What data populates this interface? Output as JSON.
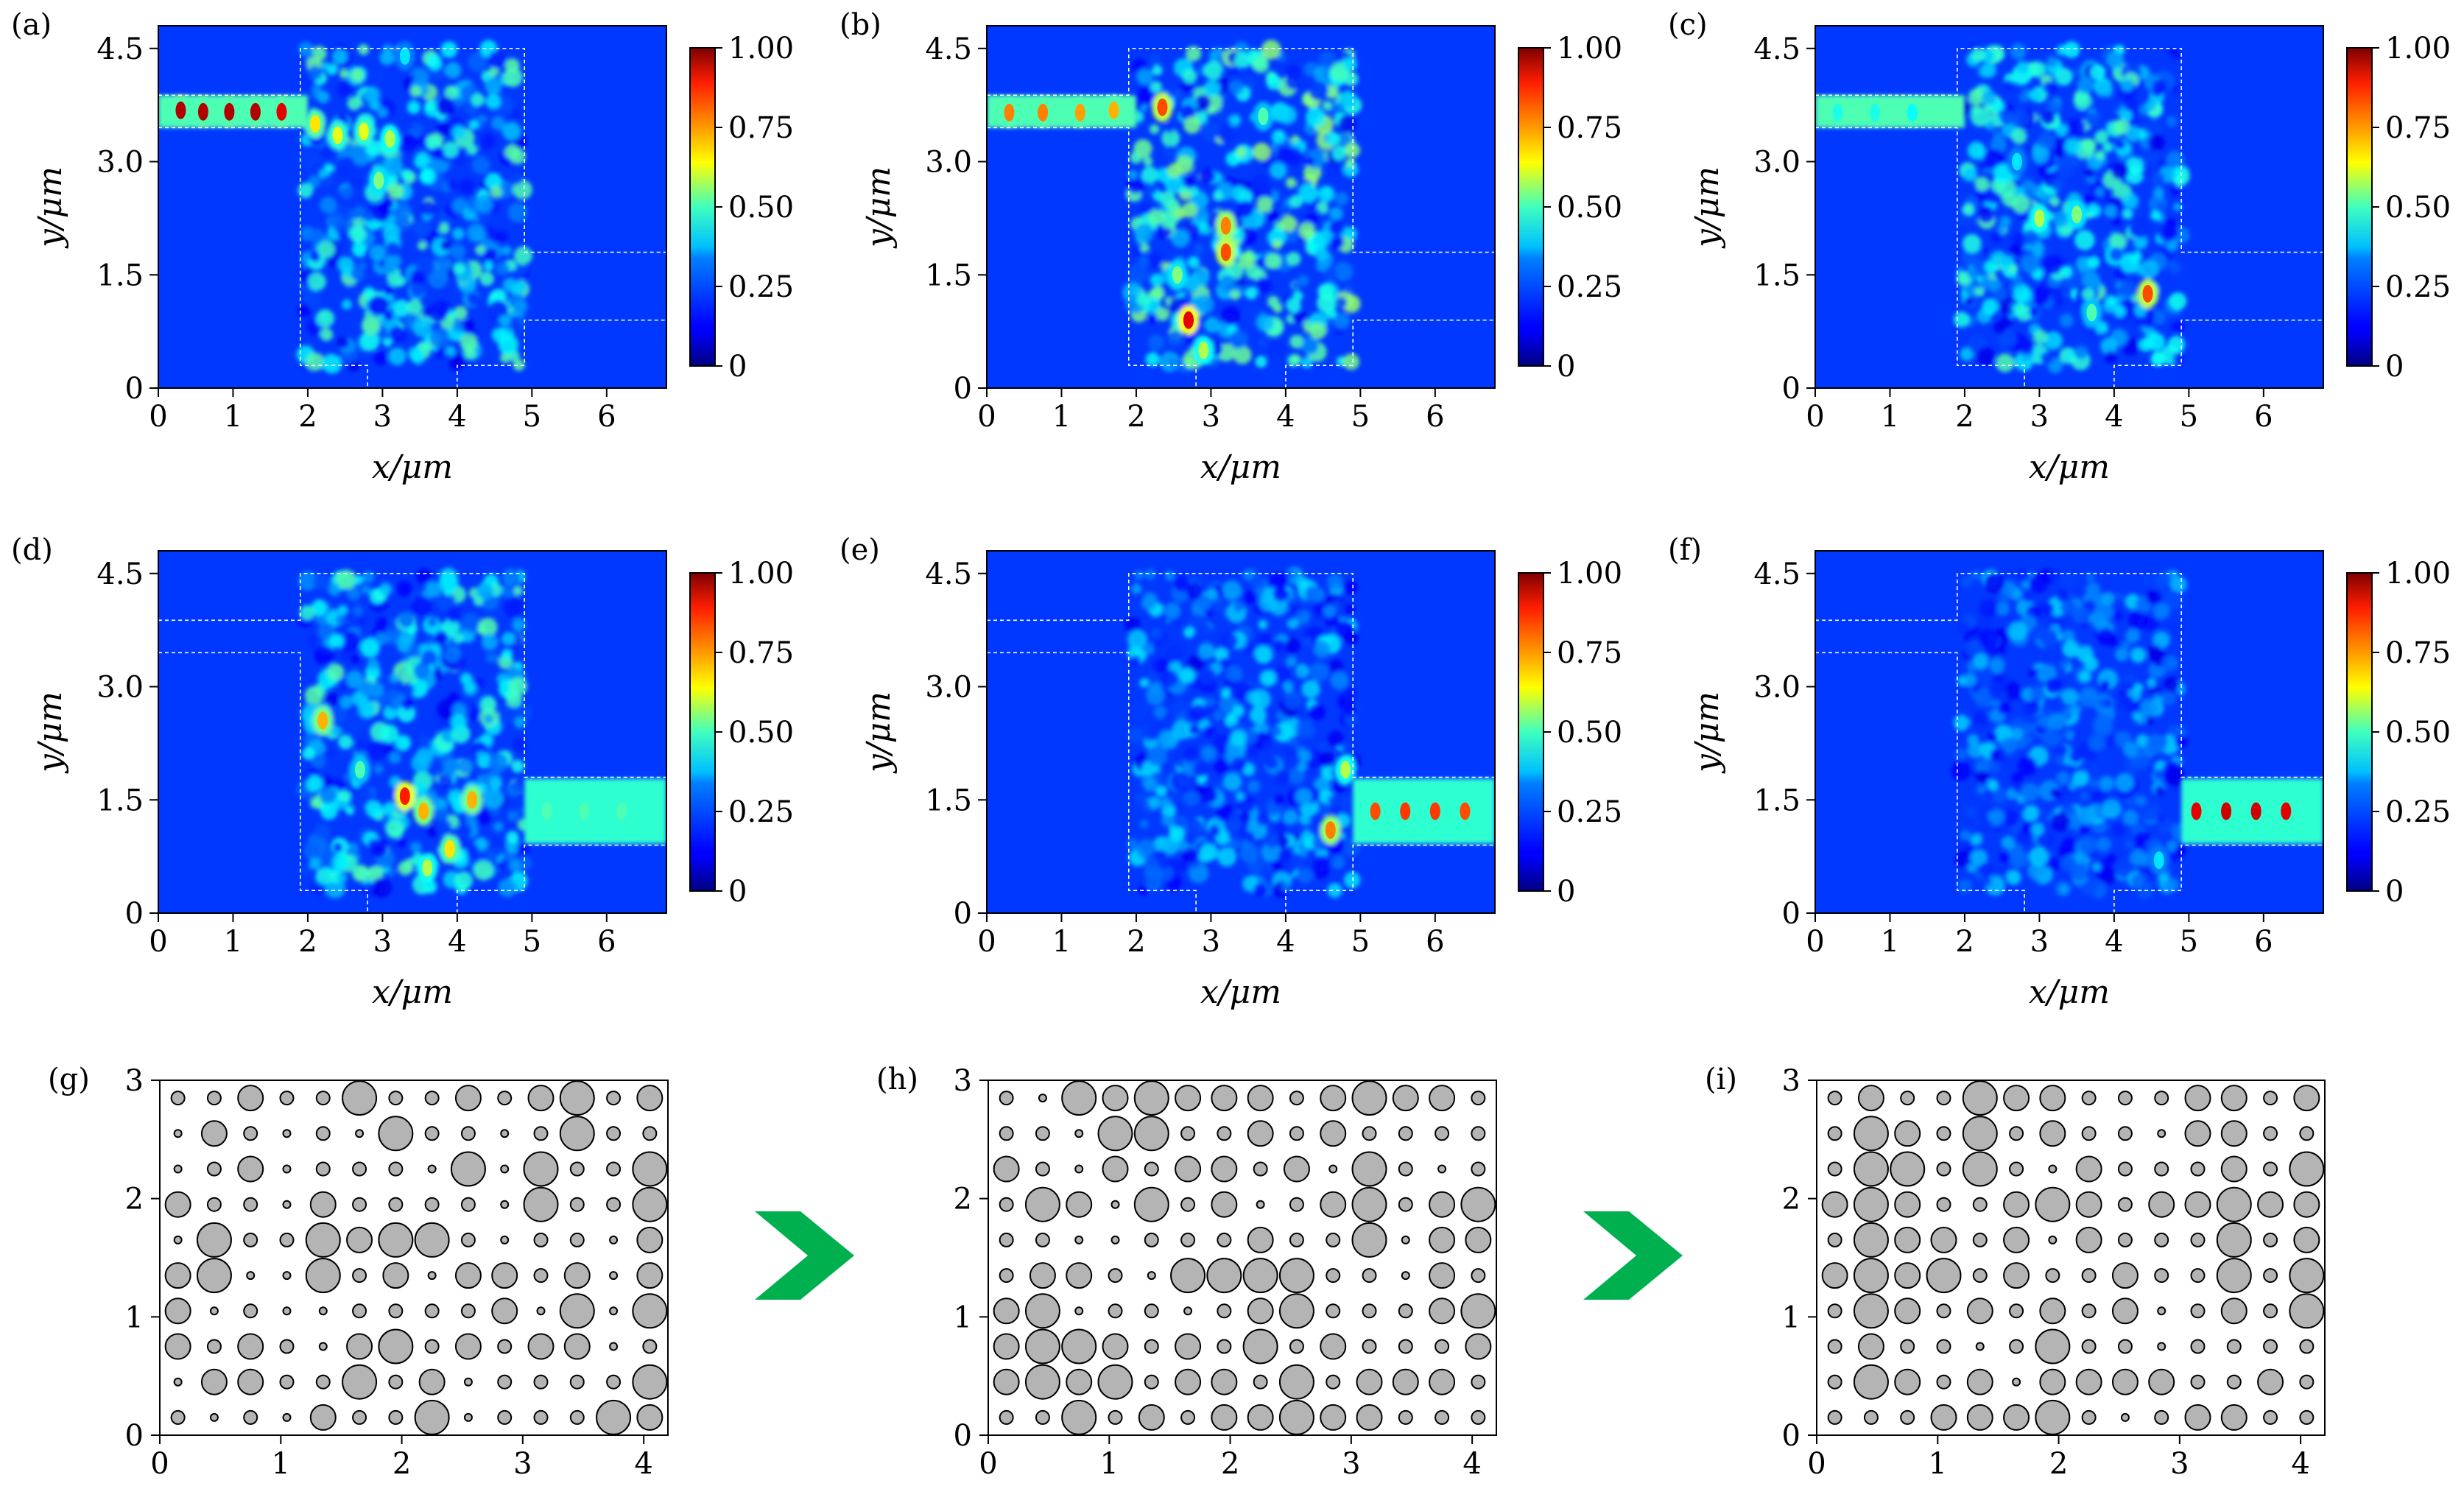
{
  "chart_data": [
    {
      "panel": "(a)",
      "type": "heatmap",
      "xlabel": "x/μm",
      "ylabel": "y/μm",
      "xlim": [
        0,
        6.8
      ],
      "ylim": [
        0,
        4.8
      ],
      "xticks": [
        "0",
        "1",
        "2",
        "3",
        "4",
        "5",
        "6"
      ],
      "yticks": [
        "0",
        "1.5",
        "3.0",
        "4.5"
      ],
      "colorbar": {
        "ticks": [
          "0",
          "0.25",
          "0.50",
          "0.75",
          "1.00"
        ],
        "range": [
          0,
          1
        ],
        "colormap": "jet"
      },
      "field": {
        "input_port": "upper-left",
        "output_port": "none",
        "mode_spots": [
          [
            0.3,
            3.68,
            0.95
          ],
          [
            0.6,
            3.66,
            0.95
          ],
          [
            0.95,
            3.66,
            0.95
          ],
          [
            1.3,
            3.66,
            0.95
          ],
          [
            1.65,
            3.66,
            0.9
          ],
          [
            2.1,
            3.5,
            0.65
          ],
          [
            2.4,
            3.35,
            0.6
          ],
          [
            2.75,
            3.4,
            0.6
          ],
          [
            3.1,
            3.3,
            0.55
          ],
          [
            2.95,
            2.75,
            0.5
          ],
          [
            3.3,
            4.4,
            0.35
          ]
        ]
      }
    },
    {
      "panel": "(b)",
      "type": "heatmap",
      "xlabel": "x/μm",
      "ylabel": "y/μm",
      "xlim": [
        0,
        6.8
      ],
      "ylim": [
        0,
        4.8
      ],
      "xticks": [
        "0",
        "1",
        "2",
        "3",
        "4",
        "5",
        "6"
      ],
      "yticks": [
        "0",
        "1.5",
        "3.0",
        "4.5"
      ],
      "colorbar": {
        "ticks": [
          "0",
          "0.25",
          "0.50",
          "0.75",
          "1.00"
        ],
        "range": [
          0,
          1
        ],
        "colormap": "jet"
      },
      "field": {
        "input_port": "upper-left",
        "output_port": "none",
        "mode_spots": [
          [
            0.3,
            3.65,
            0.75
          ],
          [
            0.75,
            3.65,
            0.75
          ],
          [
            1.25,
            3.65,
            0.72
          ],
          [
            1.7,
            3.68,
            0.7
          ],
          [
            2.35,
            3.72,
            0.8
          ],
          [
            3.2,
            2.15,
            0.75
          ],
          [
            3.2,
            1.8,
            0.8
          ],
          [
            2.7,
            0.9,
            0.9
          ],
          [
            2.55,
            1.5,
            0.5
          ],
          [
            3.7,
            3.6,
            0.45
          ],
          [
            2.9,
            0.5,
            0.55
          ]
        ]
      }
    },
    {
      "panel": "(c)",
      "type": "heatmap",
      "xlabel": "x/μm",
      "ylabel": "y/μm",
      "xlim": [
        0,
        6.8
      ],
      "ylim": [
        0,
        4.8
      ],
      "xticks": [
        "0",
        "1",
        "2",
        "3",
        "4",
        "5",
        "6"
      ],
      "yticks": [
        "0",
        "1.5",
        "3.0",
        "4.5"
      ],
      "colorbar": {
        "ticks": [
          "0",
          "0.25",
          "0.50",
          "0.75",
          "1.00"
        ],
        "range": [
          0,
          1
        ],
        "colormap": "jet"
      },
      "field": {
        "input_port": "upper-left",
        "output_port": "none",
        "mode_spots": [
          [
            0.3,
            3.65,
            0.4
          ],
          [
            0.8,
            3.65,
            0.4
          ],
          [
            1.3,
            3.65,
            0.38
          ],
          [
            3.0,
            2.25,
            0.55
          ],
          [
            3.5,
            2.3,
            0.5
          ],
          [
            4.45,
            1.25,
            0.8
          ],
          [
            3.7,
            1.0,
            0.45
          ],
          [
            2.7,
            3.0,
            0.35
          ]
        ]
      }
    },
    {
      "panel": "(d)",
      "type": "heatmap",
      "xlabel": "x/μm",
      "ylabel": "y/μm",
      "xlim": [
        0,
        6.8
      ],
      "ylim": [
        0,
        4.8
      ],
      "xticks": [
        "0",
        "1",
        "2",
        "3",
        "4",
        "5",
        "6"
      ],
      "yticks": [
        "0",
        "1.5",
        "3.0",
        "4.5"
      ],
      "colorbar": {
        "ticks": [
          "0",
          "0.25",
          "0.50",
          "0.75",
          "1.00"
        ],
        "range": [
          0,
          1
        ],
        "colormap": "jet"
      },
      "field": {
        "input_port": "none",
        "output_port": "middle-right",
        "mode_spots": [
          [
            2.2,
            2.55,
            0.7
          ],
          [
            3.3,
            1.55,
            0.85
          ],
          [
            3.55,
            1.35,
            0.7
          ],
          [
            4.2,
            1.5,
            0.7
          ],
          [
            3.9,
            0.85,
            0.65
          ],
          [
            3.6,
            0.6,
            0.55
          ],
          [
            5.2,
            1.35,
            0.45
          ],
          [
            5.7,
            1.35,
            0.45
          ],
          [
            6.2,
            1.35,
            0.45
          ],
          [
            2.7,
            1.9,
            0.45
          ]
        ]
      }
    },
    {
      "panel": "(e)",
      "type": "heatmap",
      "xlabel": "x/μm",
      "ylabel": "y/μm",
      "xlim": [
        0,
        6.8
      ],
      "ylim": [
        0,
        4.8
      ],
      "xticks": [
        "0",
        "1",
        "2",
        "3",
        "4",
        "5",
        "6"
      ],
      "yticks": [
        "0",
        "1.5",
        "3.0",
        "4.5"
      ],
      "colorbar": {
        "ticks": [
          "0",
          "0.25",
          "0.50",
          "0.75",
          "1.00"
        ],
        "range": [
          0,
          1
        ],
        "colormap": "jet"
      },
      "field": {
        "input_port": "none",
        "output_port": "middle-right",
        "mode_spots": [
          [
            4.8,
            1.9,
            0.55
          ],
          [
            4.6,
            1.1,
            0.75
          ],
          [
            5.2,
            1.35,
            0.8
          ],
          [
            5.6,
            1.35,
            0.82
          ],
          [
            6.0,
            1.35,
            0.82
          ],
          [
            6.4,
            1.35,
            0.8
          ]
        ]
      }
    },
    {
      "panel": "(f)",
      "type": "heatmap",
      "xlabel": "x/μm",
      "ylabel": "y/μm",
      "xlim": [
        0,
        6.8
      ],
      "ylim": [
        0,
        4.8
      ],
      "xticks": [
        "0",
        "1",
        "2",
        "3",
        "4",
        "5",
        "6"
      ],
      "yticks": [
        "0",
        "1.5",
        "3.0",
        "4.5"
      ],
      "colorbar": {
        "ticks": [
          "0",
          "0.25",
          "0.50",
          "0.75",
          "1.00"
        ],
        "range": [
          0,
          1
        ],
        "colormap": "jet"
      },
      "field": {
        "input_port": "none",
        "output_port": "middle-right",
        "mode_spots": [
          [
            5.1,
            1.35,
            0.9
          ],
          [
            5.5,
            1.35,
            0.92
          ],
          [
            5.9,
            1.35,
            0.92
          ],
          [
            6.3,
            1.35,
            0.9
          ],
          [
            4.6,
            0.7,
            0.35
          ]
        ]
      }
    },
    {
      "panel": "(g)",
      "type": "scatter",
      "xlim": [
        0,
        4.2
      ],
      "ylim": [
        0,
        3
      ],
      "xticks": [
        "0",
        "1",
        "2",
        "3",
        "4"
      ],
      "yticks": [
        "0",
        "1",
        "2",
        "3"
      ],
      "pitch": 0.3,
      "grid_origin": [
        0.15,
        0.15
      ],
      "grid_size": [
        14,
        10
      ],
      "radii_code": [
        "11211311212312",
        "02101031101311",
        "01201110303113",
        "21102111103113",
        "03113233101102",
        "23003120221202",
        "20100111120303",
        "21210231212201",
        "02211312011113",
        "10102113011132"
      ]
    },
    {
      "panel": "(h)",
      "type": "scatter",
      "xlim": [
        0,
        4.2
      ],
      "ylim": [
        0,
        3
      ],
      "xticks": [
        "0",
        "1",
        "2",
        "3",
        "4"
      ],
      "yticks": [
        "0",
        "1",
        "2",
        "3"
      ],
      "pitch": 0.3,
      "grid_origin": [
        0.15,
        0.15
      ],
      "grid_size": [
        14,
        10
      ],
      "radii_code": [
        "10323222123221",
        "11033112121111",
        "21021221203101",
        "13203120123123",
        "11001112113022",
        "12210333311021",
        "23011012311123",
        "23321213121112",
        "23231221312221",
        "11312122322111"
      ]
    },
    {
      "panel": "(i)",
      "type": "scatter",
      "xlim": [
        0,
        4.2
      ],
      "ylim": [
        0,
        3
      ],
      "xticks": [
        "0",
        "1",
        "2",
        "3",
        "4"
      ],
      "yticks": [
        "0",
        "1",
        "2",
        "3"
      ],
      "pitch": 0.3,
      "grid_origin": [
        0.15,
        0.15
      ],
      "grid_size": [
        14,
        10
      ],
      "radii_code": [
        "12113221112212",
        "13213121102211",
        "13313102111213",
        "23211232122322",
        "13221202111312",
        "23231211211313",
        "13212121201213",
        "12110131101111",
        "13212022221121",
        "11122231012211"
      ]
    }
  ],
  "colors": {
    "hole_fill": "#b4b4b4",
    "hole_stroke": "#000000",
    "arrow": "#00b04f",
    "outline": "#ffffff"
  }
}
